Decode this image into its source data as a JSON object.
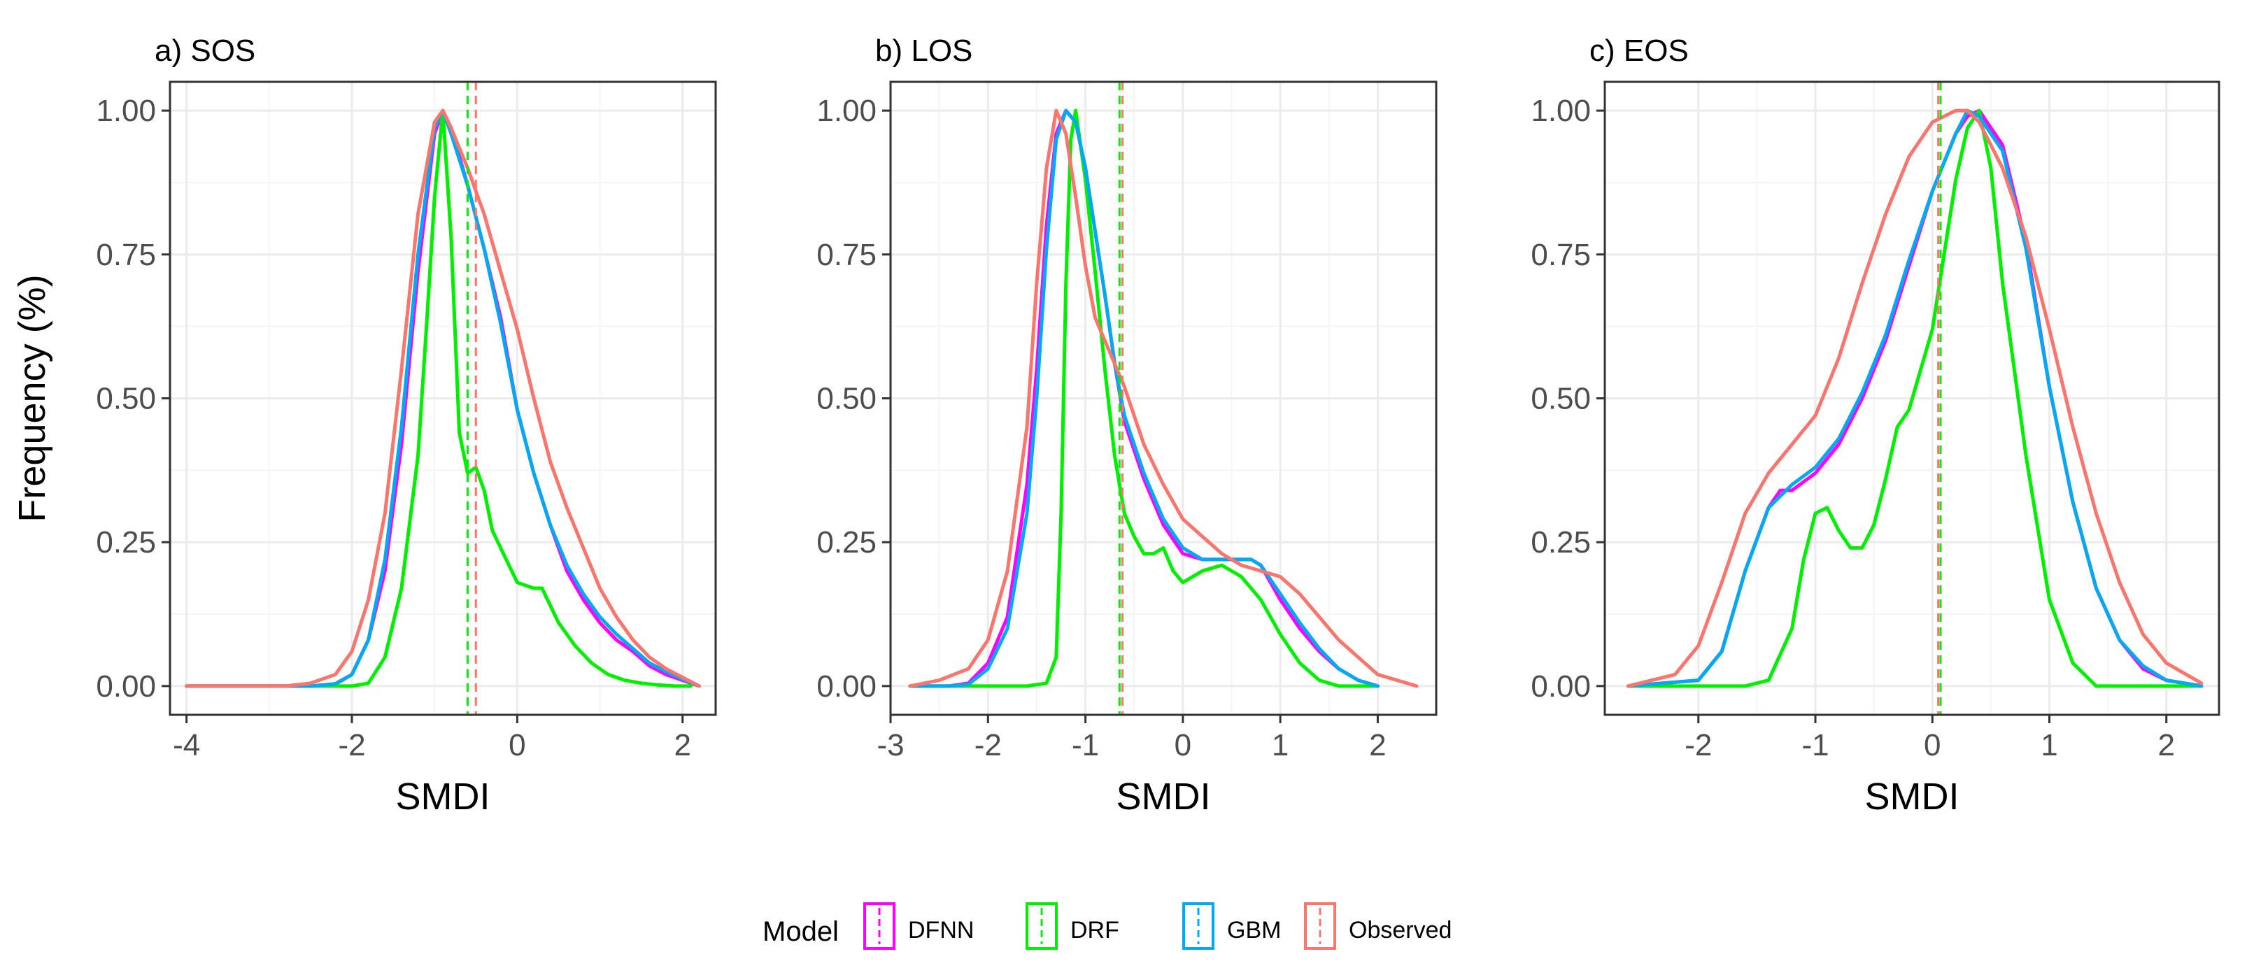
{
  "chart_data": [
    {
      "type": "line",
      "title": "a) SOS",
      "xlabel": "SMDI",
      "ylabel": "Frequency (%)",
      "xlim": [
        -4.2,
        2.4
      ],
      "ylim": [
        -0.05,
        1.05
      ],
      "xticks": [
        -4,
        -2,
        0,
        2
      ],
      "xtick_labels": [
        "-4",
        "-2",
        "0",
        "2"
      ],
      "yticks": [
        0,
        0.25,
        0.5,
        0.75,
        1
      ],
      "ytick_labels": [
        "0.00",
        "0.25",
        "0.50",
        "0.75",
        "1.00"
      ],
      "grid": true,
      "vlines": [
        {
          "model": "DRF",
          "x": -0.6
        },
        {
          "model": "Observed",
          "x": -0.5
        }
      ],
      "series": [
        {
          "name": "DFNN",
          "x": [
            -4,
            -2.5,
            -2.2,
            -2.0,
            -1.8,
            -1.6,
            -1.4,
            -1.2,
            -1.0,
            -0.9,
            -0.8,
            -0.6,
            -0.4,
            -0.2,
            0,
            0.2,
            0.4,
            0.6,
            0.8,
            1.0,
            1.2,
            1.4,
            1.6,
            1.8,
            2.0,
            2.2
          ],
          "y": [
            0,
            0,
            0.003,
            0.02,
            0.08,
            0.2,
            0.42,
            0.72,
            0.96,
            1.0,
            0.97,
            0.87,
            0.76,
            0.64,
            0.48,
            0.37,
            0.28,
            0.2,
            0.15,
            0.11,
            0.08,
            0.06,
            0.035,
            0.02,
            0.01,
            0
          ]
        },
        {
          "name": "DRF",
          "x": [
            -4,
            -2.2,
            -2.0,
            -1.8,
            -1.6,
            -1.4,
            -1.2,
            -1.1,
            -1.0,
            -0.9,
            -0.8,
            -0.7,
            -0.6,
            -0.5,
            -0.4,
            -0.3,
            -0.2,
            -0.1,
            0,
            0.2,
            0.3,
            0.5,
            0.7,
            0.9,
            1.1,
            1.3,
            1.5,
            1.7,
            1.9,
            2.1
          ],
          "y": [
            0,
            0,
            0,
            0.005,
            0.05,
            0.17,
            0.4,
            0.62,
            0.85,
            1.0,
            0.78,
            0.44,
            0.37,
            0.38,
            0.34,
            0.27,
            0.24,
            0.21,
            0.18,
            0.17,
            0.17,
            0.11,
            0.07,
            0.04,
            0.02,
            0.01,
            0.005,
            0.002,
            0,
            0
          ]
        },
        {
          "name": "GBM",
          "x": [
            -4,
            -2.5,
            -2.2,
            -2.0,
            -1.8,
            -1.6,
            -1.4,
            -1.2,
            -1.0,
            -0.9,
            -0.8,
            -0.6,
            -0.4,
            -0.2,
            0,
            0.2,
            0.4,
            0.6,
            0.8,
            1.0,
            1.2,
            1.4,
            1.6,
            1.8,
            2.0,
            2.2
          ],
          "y": [
            0,
            0,
            0.004,
            0.02,
            0.08,
            0.22,
            0.45,
            0.75,
            0.97,
            1.0,
            0.96,
            0.87,
            0.76,
            0.63,
            0.48,
            0.37,
            0.28,
            0.21,
            0.16,
            0.12,
            0.09,
            0.065,
            0.04,
            0.025,
            0.012,
            0
          ]
        },
        {
          "name": "Observed",
          "x": [
            -4,
            -2.8,
            -2.5,
            -2.2,
            -2.0,
            -1.8,
            -1.6,
            -1.4,
            -1.2,
            -1.0,
            -0.9,
            -0.8,
            -0.6,
            -0.4,
            -0.2,
            0,
            0.2,
            0.4,
            0.6,
            0.8,
            1.0,
            1.2,
            1.4,
            1.6,
            1.8,
            2.0,
            2.2
          ],
          "y": [
            0,
            0,
            0.005,
            0.02,
            0.06,
            0.15,
            0.3,
            0.55,
            0.82,
            0.98,
            1.0,
            0.97,
            0.9,
            0.82,
            0.72,
            0.62,
            0.5,
            0.39,
            0.31,
            0.24,
            0.17,
            0.12,
            0.08,
            0.05,
            0.03,
            0.015,
            0
          ]
        }
      ]
    },
    {
      "type": "line",
      "title": "b) LOS",
      "xlabel": "SMDI",
      "ylabel": "",
      "xlim": [
        -3.0,
        2.6
      ],
      "ylim": [
        -0.05,
        1.05
      ],
      "xticks": [
        -3,
        -2,
        -1,
        0,
        1,
        2
      ],
      "xtick_labels": [
        "-3",
        "-2",
        "-1",
        "0",
        "1",
        "2"
      ],
      "yticks": [
        0,
        0.25,
        0.5,
        0.75,
        1
      ],
      "ytick_labels": [
        "0.00",
        "0.25",
        "0.50",
        "0.75",
        "1.00"
      ],
      "grid": true,
      "vlines": [
        {
          "model": "DRF",
          "x": -0.65
        },
        {
          "model": "Observed",
          "x": -0.62
        }
      ],
      "series": [
        {
          "name": "DFNN",
          "x": [
            -2.8,
            -2.4,
            -2.2,
            -2.0,
            -1.8,
            -1.6,
            -1.5,
            -1.4,
            -1.3,
            -1.2,
            -1.1,
            -1.0,
            -0.9,
            -0.8,
            -0.7,
            -0.6,
            -0.4,
            -0.2,
            0,
            0.2,
            0.4,
            0.6,
            0.7,
            0.8,
            1.0,
            1.2,
            1.4,
            1.6,
            1.8,
            2.0
          ],
          "y": [
            0,
            0,
            0.005,
            0.04,
            0.12,
            0.35,
            0.55,
            0.8,
            0.96,
            1.0,
            0.98,
            0.9,
            0.79,
            0.68,
            0.56,
            0.46,
            0.36,
            0.28,
            0.23,
            0.22,
            0.22,
            0.22,
            0.22,
            0.21,
            0.15,
            0.1,
            0.06,
            0.03,
            0.01,
            0
          ]
        },
        {
          "name": "DRF",
          "x": [
            -2.8,
            -1.6,
            -1.4,
            -1.3,
            -1.25,
            -1.2,
            -1.15,
            -1.1,
            -1.0,
            -0.9,
            -0.8,
            -0.7,
            -0.6,
            -0.5,
            -0.4,
            -0.3,
            -0.2,
            -0.1,
            0,
            0.2,
            0.4,
            0.6,
            0.8,
            1.0,
            1.2,
            1.4,
            1.6,
            2.0
          ],
          "y": [
            0,
            0,
            0.005,
            0.05,
            0.3,
            0.7,
            0.95,
            1.0,
            0.88,
            0.72,
            0.55,
            0.4,
            0.3,
            0.26,
            0.23,
            0.23,
            0.24,
            0.2,
            0.18,
            0.2,
            0.21,
            0.19,
            0.15,
            0.09,
            0.04,
            0.01,
            0,
            0
          ]
        },
        {
          "name": "GBM",
          "x": [
            -2.8,
            -2.4,
            -2.2,
            -2.0,
            -1.8,
            -1.6,
            -1.5,
            -1.4,
            -1.3,
            -1.2,
            -1.1,
            -1.0,
            -0.9,
            -0.8,
            -0.7,
            -0.6,
            -0.4,
            -0.2,
            0,
            0.2,
            0.4,
            0.6,
            0.7,
            0.8,
            1.0,
            1.2,
            1.4,
            1.6,
            1.8,
            2.0
          ],
          "y": [
            0,
            0,
            0.003,
            0.03,
            0.1,
            0.3,
            0.5,
            0.76,
            0.95,
            1.0,
            0.98,
            0.9,
            0.79,
            0.68,
            0.56,
            0.47,
            0.37,
            0.29,
            0.24,
            0.22,
            0.22,
            0.22,
            0.22,
            0.21,
            0.16,
            0.11,
            0.065,
            0.03,
            0.01,
            0
          ]
        },
        {
          "name": "Observed",
          "x": [
            -2.8,
            -2.5,
            -2.2,
            -2.0,
            -1.8,
            -1.6,
            -1.5,
            -1.4,
            -1.3,
            -1.2,
            -1.1,
            -1.0,
            -0.9,
            -0.8,
            -0.7,
            -0.6,
            -0.5,
            -0.4,
            -0.2,
            0,
            0.2,
            0.4,
            0.6,
            0.8,
            1.0,
            1.2,
            1.4,
            1.6,
            1.8,
            2.0,
            2.2,
            2.4
          ],
          "y": [
            0,
            0.01,
            0.03,
            0.08,
            0.2,
            0.45,
            0.7,
            0.9,
            1.0,
            0.96,
            0.85,
            0.73,
            0.64,
            0.6,
            0.56,
            0.52,
            0.47,
            0.42,
            0.35,
            0.29,
            0.26,
            0.23,
            0.21,
            0.2,
            0.19,
            0.16,
            0.12,
            0.08,
            0.05,
            0.02,
            0.01,
            0
          ]
        }
      ]
    },
    {
      "type": "line",
      "title": "c) EOS",
      "xlabel": "SMDI",
      "ylabel": "",
      "xlim": [
        -2.8,
        2.45
      ],
      "ylim": [
        -0.05,
        1.05
      ],
      "xticks": [
        -2,
        -1,
        0,
        1,
        2
      ],
      "xtick_labels": [
        "-2",
        "-1",
        "0",
        "1",
        "2"
      ],
      "yticks": [
        0,
        0.25,
        0.5,
        0.75,
        1
      ],
      "ytick_labels": [
        "0.00",
        "0.25",
        "0.50",
        "0.75",
        "1.00"
      ],
      "grid": true,
      "vlines": [
        {
          "model": "DRF",
          "x": 0.07
        },
        {
          "model": "Observed",
          "x": 0.05
        }
      ],
      "series": [
        {
          "name": "DFNN",
          "x": [
            -2.6,
            -2.0,
            -1.8,
            -1.6,
            -1.4,
            -1.3,
            -1.2,
            -1.0,
            -0.8,
            -0.6,
            -0.4,
            -0.2,
            0,
            0.2,
            0.3,
            0.4,
            0.6,
            0.8,
            1.0,
            1.2,
            1.4,
            1.6,
            1.8,
            2.0,
            2.3
          ],
          "y": [
            0,
            0.01,
            0.06,
            0.2,
            0.31,
            0.34,
            0.34,
            0.37,
            0.42,
            0.5,
            0.6,
            0.73,
            0.86,
            0.96,
            0.99,
            1.0,
            0.94,
            0.77,
            0.52,
            0.32,
            0.17,
            0.08,
            0.03,
            0.01,
            0
          ]
        },
        {
          "name": "DRF",
          "x": [
            -2.6,
            -1.6,
            -1.4,
            -1.2,
            -1.1,
            -1.0,
            -0.9,
            -0.8,
            -0.7,
            -0.6,
            -0.5,
            -0.4,
            -0.3,
            -0.2,
            0,
            0.1,
            0.2,
            0.3,
            0.4,
            0.5,
            0.6,
            0.8,
            1.0,
            1.2,
            1.4,
            2.3
          ],
          "y": [
            0,
            0,
            0.01,
            0.1,
            0.22,
            0.3,
            0.31,
            0.27,
            0.24,
            0.24,
            0.28,
            0.36,
            0.45,
            0.48,
            0.62,
            0.75,
            0.88,
            0.97,
            1.0,
            0.9,
            0.7,
            0.4,
            0.15,
            0.04,
            0,
            0
          ]
        },
        {
          "name": "GBM",
          "x": [
            -2.6,
            -2.0,
            -1.8,
            -1.6,
            -1.4,
            -1.2,
            -1.0,
            -0.8,
            -0.6,
            -0.4,
            -0.2,
            0,
            0.2,
            0.3,
            0.4,
            0.6,
            0.8,
            1.0,
            1.2,
            1.4,
            1.6,
            1.8,
            2.0,
            2.3
          ],
          "y": [
            0,
            0.01,
            0.06,
            0.2,
            0.31,
            0.35,
            0.38,
            0.43,
            0.51,
            0.61,
            0.74,
            0.86,
            0.96,
            1.0,
            0.99,
            0.93,
            0.76,
            0.52,
            0.32,
            0.17,
            0.08,
            0.035,
            0.01,
            0
          ]
        },
        {
          "name": "Observed",
          "x": [
            -2.6,
            -2.2,
            -2.0,
            -1.8,
            -1.6,
            -1.4,
            -1.2,
            -1.0,
            -0.8,
            -0.6,
            -0.4,
            -0.2,
            0,
            0.2,
            0.3,
            0.4,
            0.6,
            0.8,
            1.0,
            1.2,
            1.4,
            1.6,
            1.8,
            2.0,
            2.3
          ],
          "y": [
            0,
            0.02,
            0.07,
            0.18,
            0.3,
            0.37,
            0.42,
            0.47,
            0.57,
            0.7,
            0.82,
            0.92,
            0.98,
            1.0,
            1.0,
            0.98,
            0.9,
            0.78,
            0.62,
            0.45,
            0.3,
            0.18,
            0.09,
            0.04,
            0.005
          ]
        }
      ]
    }
  ],
  "legend": {
    "title": "Model",
    "entries": [
      {
        "label": "DFNN",
        "color": "#ff00ff"
      },
      {
        "label": "DRF",
        "color": "#00ee00"
      },
      {
        "label": "GBM",
        "color": "#00a9f0"
      },
      {
        "label": "Observed",
        "color": "#f8766d"
      }
    ]
  },
  "colors": {
    "DFNN": "#ff00ff",
    "DRF": "#00ee00",
    "GBM": "#00a9f0",
    "Observed": "#f8766d",
    "grid_major": "#ebebeb",
    "grid_minor": "#f5f5f5",
    "panel_border": "#333333"
  }
}
